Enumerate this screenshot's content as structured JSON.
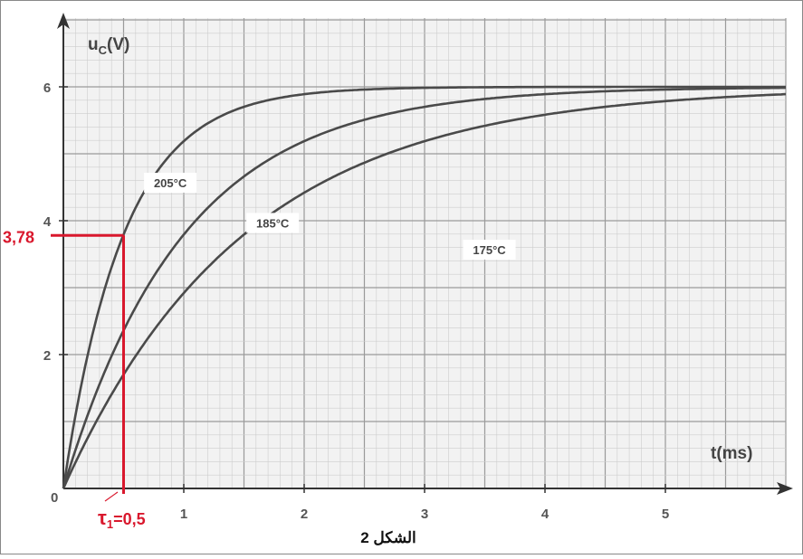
{
  "chart_data": {
    "type": "line",
    "title": "",
    "caption": "الشكل 2",
    "xlabel": "t(ms)",
    "ylabel_main": "u",
    "ylabel_sub": "C",
    "ylabel_unit": "(V)",
    "xlim": [
      0,
      6
    ],
    "ylim": [
      0,
      6.8
    ],
    "x_ticks": [
      1,
      2,
      3,
      4,
      5
    ],
    "y_ticks": [
      2,
      4,
      6
    ],
    "origin_label": "0",
    "grid": true,
    "series": [
      {
        "name": "205°C",
        "tau_ms": 0.5,
        "x": [
          0,
          0.25,
          0.5,
          0.75,
          1,
          1.5,
          2,
          2.5,
          3,
          4,
          5,
          6
        ],
        "y": [
          0,
          2.36,
          3.79,
          4.66,
          5.19,
          5.7,
          5.89,
          5.96,
          5.99,
          6.0,
          6.0,
          6.0
        ]
      },
      {
        "name": "185°C",
        "tau_ms": 1.0,
        "x": [
          0,
          0.25,
          0.5,
          0.75,
          1,
          1.5,
          2,
          2.5,
          3,
          4,
          5,
          6
        ],
        "y": [
          0,
          1.33,
          2.36,
          3.17,
          3.79,
          4.66,
          5.19,
          5.51,
          5.7,
          5.89,
          5.96,
          5.99
        ]
      },
      {
        "name": "175°C",
        "tau_ms": 1.5,
        "x": [
          0,
          0.25,
          0.5,
          0.75,
          1,
          1.5,
          2,
          2.5,
          3,
          4,
          5,
          6
        ],
        "y": [
          0,
          0.92,
          1.7,
          2.36,
          2.92,
          3.79,
          4.42,
          4.87,
          5.19,
          5.58,
          5.79,
          5.89
        ]
      }
    ],
    "annotation": {
      "y_value": 3.78,
      "y_label": "3,78",
      "x_value": 0.5,
      "x_label_symbol": "τ",
      "x_label_sub": "1",
      "x_label_value": "=0,5",
      "color": "#d9182d"
    }
  }
}
